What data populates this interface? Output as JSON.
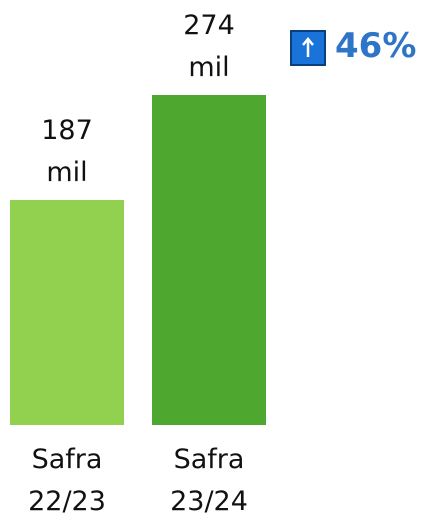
{
  "chart_data": {
    "type": "bar",
    "categories": [
      "Safra 22/23",
      "Safra 23/24"
    ],
    "values": [
      187,
      274
    ],
    "value_labels": [
      "187 mil",
      "274 mil"
    ],
    "colors": [
      "#92d050",
      "#4ea72e"
    ],
    "annotation": "46%"
  }
}
